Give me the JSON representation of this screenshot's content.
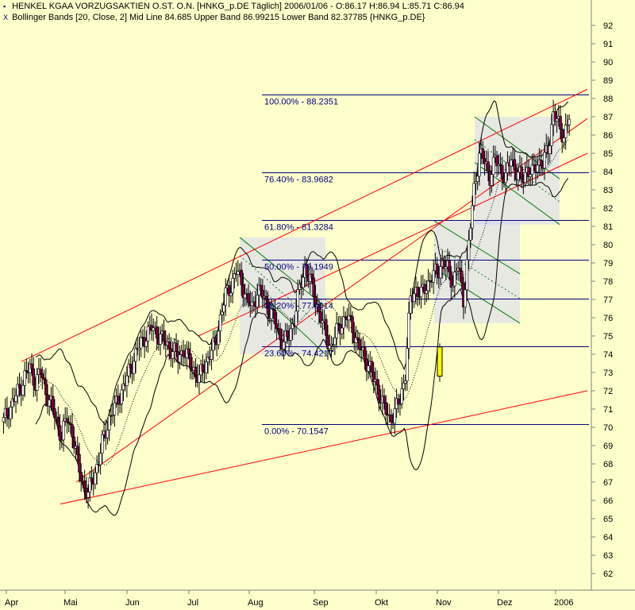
{
  "header": {
    "line1": "HENKEL KGAA VORZUGSAKTIEN O.ST. O.N. [HNKG_p.DE  Täglich] 2006/01/06 - O:86.17 H:86.94 L:85.71 C:86.94",
    "line2": "Bollinger Bands [20, Close, 2] Mid Line 84.685 Upper Band 86.99215 Lower Band 82.37785 {HNKG_p.DE}",
    "icon1": "chart-icon",
    "icon2": "indicator-icon"
  },
  "colors": {
    "background": "#ffffcc",
    "candle_up": "#ffffff",
    "candle_down": "#800040",
    "highlight_candle": "#ffff00",
    "fib_line": "#000080",
    "fib_text": "#000080",
    "trend_line": "#ff0000",
    "channel_fill": "#ccccff",
    "channel_line": "#008000",
    "bollinger": "#000000"
  },
  "chart_data": {
    "type": "candlestick",
    "y_axis": {
      "min": 62,
      "max": 92,
      "ticks": [
        62,
        63,
        64,
        65,
        66,
        67,
        68,
        69,
        70,
        71,
        72,
        73,
        74,
        75,
        76,
        77,
        78,
        79,
        80,
        81,
        82,
        83,
        84,
        85,
        86,
        87,
        88,
        89,
        90,
        91,
        92
      ]
    },
    "x_labels": [
      "Apr",
      "Mai",
      "Jun",
      "Jul",
      "Aug",
      "Sep",
      "Okt",
      "Nov",
      "Dez",
      "2006"
    ],
    "fibonacci": [
      {
        "label": "100.00% - 88.2351",
        "value": 88.2351
      },
      {
        "label": "76.40% - 83.9682",
        "value": 83.9682
      },
      {
        "label": "61.80% - 81.3284",
        "value": 81.3284
      },
      {
        "label": "50.00% - 79.1949",
        "value": 79.1949
      },
      {
        "label": "38.20% - 77.0614",
        "value": 77.0614
      },
      {
        "label": "23.60% - 74.4217",
        "value": 74.4217
      },
      {
        "label": "0.00% - 70.1547",
        "value": 70.1547
      }
    ],
    "close_path": [
      [
        0,
        70.3
      ],
      [
        3,
        71.0
      ],
      [
        6,
        71.5
      ],
      [
        9,
        72.1
      ],
      [
        12,
        72.8
      ],
      [
        15,
        73.2
      ],
      [
        18,
        72.5
      ],
      [
        21,
        73.0
      ],
      [
        24,
        72.0
      ],
      [
        27,
        71.2
      ],
      [
        30,
        70.4
      ],
      [
        33,
        69.5
      ],
      [
        36,
        70.5
      ],
      [
        39,
        69.8
      ],
      [
        42,
        68.0
      ],
      [
        45,
        67.0
      ],
      [
        48,
        66.3
      ],
      [
        51,
        67.3
      ],
      [
        54,
        68.2
      ],
      [
        57,
        69.5
      ],
      [
        60,
        70.5
      ],
      [
        63,
        71.0
      ],
      [
        66,
        71.8
      ],
      [
        69,
        72.4
      ],
      [
        72,
        73.3
      ],
      [
        75,
        74.0
      ],
      [
        78,
        74.6
      ],
      [
        81,
        75.1
      ],
      [
        84,
        75.4
      ],
      [
        87,
        75.2
      ],
      [
        90,
        74.8
      ],
      [
        93,
        74.5
      ],
      [
        96,
        74.2
      ],
      [
        99,
        73.8
      ],
      [
        102,
        74.3
      ],
      [
        105,
        73.6
      ],
      [
        108,
        73.2
      ],
      [
        111,
        72.6
      ],
      [
        114,
        73.4
      ],
      [
        117,
        74.0
      ],
      [
        120,
        74.5
      ],
      [
        123,
        76.0
      ],
      [
        126,
        77.2
      ],
      [
        129,
        77.8
      ],
      [
        132,
        78.5
      ],
      [
        135,
        78.0
      ],
      [
        138,
        77.0
      ],
      [
        141,
        76.5
      ],
      [
        144,
        77.5
      ],
      [
        147,
        77.2
      ],
      [
        150,
        76.6
      ],
      [
        153,
        76.0
      ],
      [
        156,
        75.2
      ],
      [
        159,
        74.6
      ],
      [
        162,
        75.0
      ],
      [
        165,
        76.0
      ],
      [
        168,
        77.5
      ],
      [
        171,
        78.8
      ],
      [
        174,
        78.0
      ],
      [
        177,
        77.0
      ],
      [
        180,
        76.0
      ],
      [
        183,
        75.0
      ],
      [
        186,
        74.4
      ],
      [
        189,
        75.2
      ],
      [
        192,
        75.8
      ],
      [
        195,
        76.0
      ],
      [
        198,
        75.5
      ],
      [
        201,
        74.5
      ],
      [
        204,
        74.0
      ],
      [
        207,
        73.5
      ],
      [
        210,
        72.6
      ],
      [
        213,
        72.0
      ],
      [
        216,
        71.0
      ],
      [
        219,
        70.5
      ],
      [
        222,
        70.8
      ],
      [
        225,
        71.5
      ],
      [
        228,
        73.0
      ],
      [
        231,
        77.0
      ],
      [
        234,
        77.6
      ],
      [
        237,
        77.2
      ],
      [
        240,
        77.8
      ],
      [
        243,
        78.2
      ],
      [
        246,
        78.5
      ],
      [
        249,
        79.0
      ],
      [
        252,
        78.6
      ],
      [
        255,
        78.0
      ],
      [
        258,
        78.8
      ],
      [
        261,
        77.0
      ],
      [
        264,
        80.0
      ],
      [
        267,
        83.0
      ],
      [
        270,
        85.0
      ],
      [
        273,
        84.5
      ],
      [
        276,
        83.8
      ],
      [
        279,
        84.6
      ],
      [
        282,
        84.2
      ],
      [
        285,
        83.6
      ],
      [
        288,
        84.8
      ],
      [
        291,
        84.0
      ],
      [
        294,
        83.5
      ],
      [
        297,
        84.2
      ],
      [
        300,
        83.8
      ],
      [
        303,
        84.6
      ],
      [
        306,
        84.4
      ],
      [
        309,
        85.2
      ],
      [
        312,
        87.2
      ],
      [
        315,
        86.5
      ],
      [
        318,
        86.0
      ],
      [
        321,
        86.9
      ]
    ],
    "trend_lines": [
      {
        "from": [
          27,
          73.6
        ],
        "to": [
          740,
          88.5
        ]
      },
      {
        "from": [
          76,
          65.8
        ],
        "to": [
          740,
          72.0
        ]
      },
      {
        "from": [
          96,
          67.0
        ],
        "to": [
          740,
          86.9
        ]
      },
      {
        "from": [
          250,
          75.0
        ],
        "to": [
          740,
          85.0
        ]
      }
    ],
    "regression_channels": [
      {
        "x0": 302,
        "x1": 410,
        "upper": [
          80.4,
          76.6
        ],
        "lower": [
          78.4,
          74.0
        ]
      },
      {
        "x0": 547,
        "x1": 655,
        "upper": [
          81.3,
          78.4
        ],
        "lower": [
          78.7,
          75.7
        ]
      },
      {
        "x0": 598,
        "x1": 705,
        "upper": [
          87.0,
          83.6
        ],
        "lower": [
          84.5,
          81.1
        ]
      }
    ],
    "highlight_candle": {
      "x": 551,
      "open": 72.8,
      "close": 74.4,
      "high": 74.6,
      "low": 72.5
    }
  }
}
